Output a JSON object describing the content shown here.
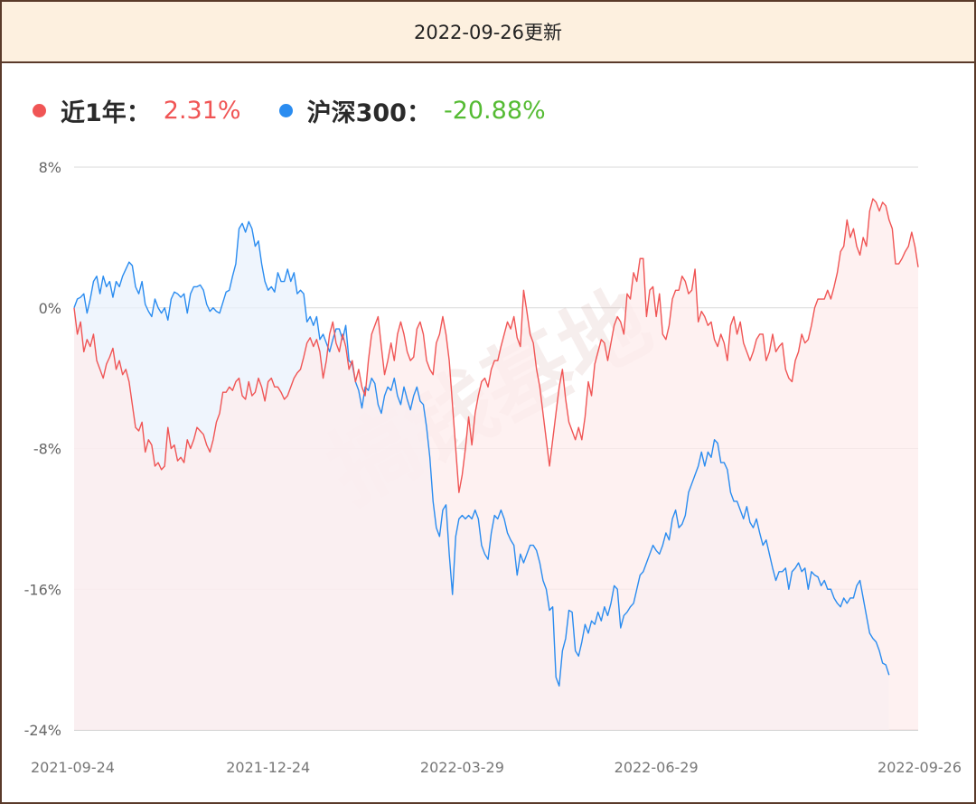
{
  "header": {
    "title": "2022-09-26更新"
  },
  "legend": {
    "fund_label": "近1年：",
    "fund_value": "2.31%",
    "index_label": "沪深300：",
    "index_value": "-20.88%"
  },
  "watermark": "搞钱基地",
  "colors": {
    "fund": "#f05555",
    "index": "#2a8cf0",
    "fund_value": "#f05555",
    "index_value": "#55bb33",
    "fund_fill": "#fdecec",
    "index_fill": "#e9f2fc",
    "grid": "#d9d9d9"
  },
  "chart_data": {
    "type": "line",
    "title": "",
    "ylim": [
      -24,
      8
    ],
    "y_ticks": [
      "8%",
      "0%",
      "-8%",
      "-16%",
      "-24%"
    ],
    "y_tick_values": [
      8,
      0,
      -8,
      -16,
      -24
    ],
    "x_ticks": [
      "2021-09-24",
      "2021-12-24",
      "2022-03-29",
      "2022-06-29",
      "2022-09-26"
    ],
    "x_tick_index": [
      0,
      60,
      120,
      180,
      243
    ],
    "grid": true,
    "series": [
      {
        "name": "近1年",
        "values": [
          0,
          -1.5,
          -0.8,
          -2.5,
          -1.8,
          -2.2,
          -1.5,
          -3.0,
          -3.5,
          -4.0,
          -3.2,
          -2.8,
          -2.3,
          -3.5,
          -3.0,
          -3.8,
          -3.5,
          -4.2,
          -5.5,
          -6.8,
          -7.0,
          -6.5,
          -8.2,
          -7.5,
          -7.8,
          -9.0,
          -8.8,
          -9.2,
          -9.0,
          -6.8,
          -8.0,
          -7.8,
          -8.7,
          -8.5,
          -8.8,
          -7.5,
          -8.0,
          -7.5,
          -6.8,
          -7.0,
          -7.2,
          -7.8,
          -8.2,
          -7.5,
          -6.5,
          -6.0,
          -4.8,
          -4.8,
          -4.5,
          -4.7,
          -4.2,
          -4.0,
          -5.0,
          -5.2,
          -4.2,
          -5.0,
          -4.8,
          -4.0,
          -4.5,
          -5.3,
          -4.2,
          -4.0,
          -4.5,
          -4.5,
          -4.8,
          -5.2,
          -5.0,
          -4.5,
          -4.0,
          -3.7,
          -3.5,
          -2.8,
          -2.0,
          -1.7,
          -2.2,
          -1.8,
          -2.5,
          -4.0,
          -3.0,
          -1.5,
          -0.8,
          -2.0,
          -2.5,
          -1.5,
          -2.2,
          -3.5,
          -3.0,
          -4.2,
          -3.5,
          -4.5,
          -5.0,
          -3.0,
          -1.5,
          -1.0,
          -0.5,
          -2.2,
          -3.8,
          -3.0,
          -2.0,
          -3.0,
          -1.5,
          -0.8,
          -1.5,
          -2.5,
          -3.0,
          -2.8,
          -1.2,
          -0.8,
          -1.5,
          -3.0,
          -3.5,
          -3.8,
          -2.0,
          -1.5,
          -0.5,
          -1.5,
          -3.0,
          -5.5,
          -8.0,
          -10.5,
          -9.5,
          -8.0,
          -6.2,
          -7.8,
          -6.0,
          -5.0,
          -4.2,
          -4.0,
          -4.5,
          -3.5,
          -3.0,
          -3.0,
          -2.2,
          -1.5,
          -0.8,
          -1.2,
          -0.5,
          -1.7,
          -2.2,
          1.0,
          -0.2,
          -1.5,
          -2.0,
          -3.5,
          -4.5,
          -6.0,
          -7.5,
          -9.0,
          -7.5,
          -6.0,
          -4.5,
          -3.5,
          -5.2,
          -6.5,
          -7.0,
          -7.5,
          -6.8,
          -7.5,
          -6.2,
          -4.2,
          -5.0,
          -3.2,
          -2.5,
          -1.8,
          -2.0,
          -3.0,
          -2.0,
          -1.0,
          -0.5,
          -0.8,
          -1.5,
          0.8,
          0.5,
          2.0,
          1.5,
          2.8,
          2.8,
          -0.5,
          1.0,
          1.2,
          -0.5,
          0.8,
          -1.5,
          -1.8,
          -1.0,
          0.5,
          1.0,
          1.0,
          1.8,
          1.5,
          0.8,
          1.0,
          2.2,
          -0.8,
          -0.2,
          -0.5,
          -1.0,
          -0.8,
          -1.8,
          -2.2,
          -1.5,
          -2.0,
          -3.0,
          -1.0,
          -0.5,
          -1.5,
          -0.8,
          -2.0,
          -2.5,
          -3.0,
          -2.5,
          -1.8,
          -1.5,
          -1.5,
          -3.0,
          -2.5,
          -1.5,
          -2.5,
          -2.2,
          -2.0,
          -3.5,
          -4.0,
          -4.2,
          -3.0,
          -2.5,
          -1.5,
          -2.0,
          -1.8,
          -1.0,
          0.0,
          0.5,
          0.5,
          0.5,
          1.0,
          0.5,
          1.2,
          2.0,
          3.2,
          3.5,
          5.0,
          4.0,
          4.5,
          3.5,
          3.0,
          4.0,
          3.5,
          5.5,
          6.2,
          6.0,
          5.5,
          6.0,
          5.8,
          5.0,
          4.5,
          2.5,
          2.5,
          2.8,
          3.2,
          3.5,
          4.3,
          3.5,
          2.31
        ]
      },
      {
        "name": "沪深300",
        "values": [
          0,
          0.5,
          0.6,
          0.8,
          -0.3,
          0.5,
          1.5,
          1.8,
          0.8,
          1.8,
          1.2,
          1.5,
          0.6,
          1.5,
          1.2,
          1.8,
          2.2,
          2.6,
          2.4,
          1.2,
          0.8,
          1.5,
          0.2,
          -0.2,
          -0.5,
          0.5,
          0.0,
          -0.3,
          0.0,
          -0.7,
          0.5,
          0.9,
          0.8,
          0.6,
          0.8,
          -0.3,
          0.8,
          1.2,
          1.2,
          1.3,
          1.0,
          0.2,
          -0.2,
          0.0,
          -0.2,
          -0.3,
          0.3,
          0.9,
          1.0,
          1.8,
          2.5,
          4.5,
          4.8,
          4.3,
          4.9,
          4.5,
          3.5,
          3.8,
          2.5,
          1.5,
          1.0,
          1.2,
          0.9,
          2.0,
          1.5,
          1.5,
          2.2,
          1.5,
          2.0,
          0.8,
          1.0,
          0.8,
          -0.8,
          -0.5,
          -1.0,
          -0.5,
          -1.8,
          -1.5,
          -2.0,
          -2.5,
          -1.8,
          -1.2,
          -1.2,
          -1.8,
          -1.0,
          -3.0,
          -3.2,
          -4.2,
          -4.7,
          -5.7,
          -4.5,
          -4.7,
          -4.0,
          -4.3,
          -5.5,
          -6.0,
          -5.0,
          -4.5,
          -4.7,
          -4.0,
          -5.0,
          -5.5,
          -4.5,
          -5.2,
          -5.8,
          -5.0,
          -4.5,
          -5.3,
          -5.5,
          -6.8,
          -8.5,
          -11.0,
          -12.5,
          -13.0,
          -11.5,
          -11.2,
          -14.0,
          -16.3,
          -13.0,
          -12.0,
          -11.8,
          -12.0,
          -11.8,
          -12.0,
          -11.5,
          -12.0,
          -13.5,
          -14.0,
          -14.3,
          -12.8,
          -11.8,
          -12.0,
          -11.5,
          -12.0,
          -12.8,
          -13.2,
          -13.5,
          -15.2,
          -14.0,
          -14.5,
          -14.0,
          -13.5,
          -13.5,
          -13.8,
          -14.5,
          -15.5,
          -16.0,
          -17.2,
          -17.0,
          -21.0,
          -21.5,
          -19.5,
          -18.8,
          -17.2,
          -17.3,
          -19.5,
          -19.8,
          -19.0,
          -18.0,
          -18.5,
          -17.8,
          -18.0,
          -17.3,
          -17.8,
          -17.0,
          -17.5,
          -16.8,
          -15.8,
          -16.0,
          -18.2,
          -17.5,
          -17.3,
          -17.0,
          -16.8,
          -16.0,
          -15.2,
          -15.0,
          -14.5,
          -14.0,
          -13.5,
          -13.8,
          -14.0,
          -13.5,
          -12.8,
          -13.2,
          -12.0,
          -11.5,
          -12.5,
          -12.3,
          -11.8,
          -10.5,
          -10.0,
          -9.5,
          -9.0,
          -8.2,
          -9.0,
          -8.2,
          -8.5,
          -7.5,
          -7.7,
          -8.8,
          -8.8,
          -9.2,
          -10.5,
          -11.0,
          -11.0,
          -11.5,
          -12.0,
          -11.3,
          -12.2,
          -12.5,
          -12.0,
          -12.8,
          -13.5,
          -13.2,
          -14.0,
          -14.8,
          -15.5,
          -15.0,
          -15.0,
          -14.8,
          -16.0,
          -15.0,
          -14.8,
          -14.5,
          -15.0,
          -14.8,
          -16.0,
          -15.0,
          -15.2,
          -15.3,
          -15.8,
          -15.5,
          -16.0,
          -16.0,
          -16.5,
          -16.8,
          -17.0,
          -16.5,
          -16.8,
          -16.5,
          -16.5,
          -15.8,
          -15.5,
          -16.5,
          -17.5,
          -18.5,
          -18.8,
          -19.0,
          -19.5,
          -20.2,
          -20.3,
          -20.88
        ]
      }
    ]
  }
}
